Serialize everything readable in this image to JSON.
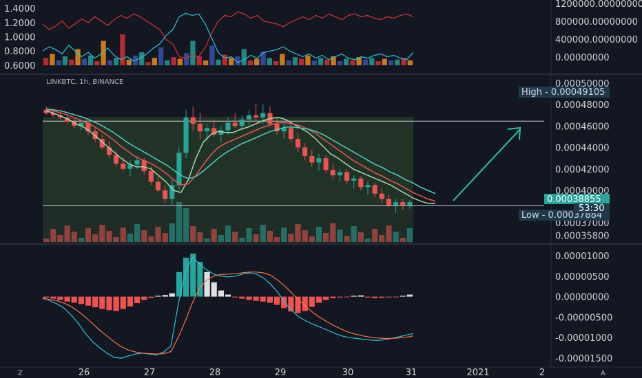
{
  "symbol_label": "LINKBTC, 1h, BINANCE",
  "timer_label": "53:30",
  "corner_left_label": "Z",
  "corner_right_label": "A",
  "chart_data": [
    {
      "type": "line",
      "name": "oscillator-pane",
      "y_ticks": [
        "1.4000",
        "1.2000",
        "1.0000",
        "0.8000",
        "0.6000"
      ],
      "y_ticks_right": [
        "1200000.00000000",
        "800000.00000000",
        "400000.00000000",
        "0.00000000"
      ],
      "series": [
        {
          "color": "#e0303a",
          "values": [
            1.18,
            1.1,
            1.15,
            1.22,
            1.12,
            1.18,
            1.25,
            1.2,
            1.28,
            1.22,
            1.16,
            1.24,
            1.3,
            1.26,
            1.32,
            1.28,
            1.22,
            1.16,
            1.1,
            0.96,
            0.9,
            0.72,
            0.7,
            0.74,
            0.72,
            0.85,
            1.05,
            1.22,
            1.3,
            1.28,
            1.35,
            1.32,
            1.26,
            1.3,
            1.22,
            1.2,
            1.18,
            1.14,
            1.2,
            1.24,
            1.28,
            1.24,
            1.3,
            1.26,
            1.32,
            1.28,
            1.24,
            1.3,
            1.32,
            1.28,
            1.3,
            1.26,
            1.24,
            1.28,
            1.26,
            1.3,
            1.32,
            1.28
          ]
        },
        {
          "color": "#26c6da",
          "values": [
            0.8,
            0.86,
            0.82,
            0.76,
            0.88,
            0.8,
            0.72,
            0.78,
            0.7,
            0.76,
            0.84,
            0.74,
            0.68,
            0.72,
            0.66,
            0.7,
            0.76,
            0.84,
            0.9,
            1.02,
            1.1,
            1.28,
            1.33,
            1.3,
            1.32,
            1.18,
            0.98,
            0.78,
            0.7,
            0.72,
            0.64,
            0.68,
            0.74,
            0.7,
            0.78,
            0.8,
            0.82,
            0.86,
            0.8,
            0.76,
            0.72,
            0.76,
            0.7,
            0.74,
            0.68,
            0.72,
            0.76,
            0.7,
            0.68,
            0.72,
            0.7,
            0.74,
            0.76,
            0.72,
            0.74,
            0.7,
            0.68,
            0.78
          ]
        }
      ],
      "volume_bars": [
        90,
        140,
        60,
        110,
        70,
        200,
        80,
        120,
        50,
        300,
        60,
        90,
        380,
        70,
        120,
        160,
        40,
        90,
        220,
        60,
        100,
        80,
        150,
        300,
        110,
        60,
        240,
        70,
        130,
        90,
        110,
        200,
        60,
        80,
        170,
        90,
        50,
        140,
        60,
        100,
        80,
        120,
        60,
        90,
        70,
        110,
        50,
        80,
        60,
        100,
        70,
        90,
        50,
        80,
        60,
        70,
        90,
        60
      ]
    },
    {
      "type": "candlestick",
      "name": "price-pane",
      "y_ticks": [
        "0.00050000",
        "0.00048000",
        "0.00046000",
        "0.00044000",
        "0.00042000",
        "0.00040000",
        "0.00037000",
        "0.00035800"
      ],
      "high_label": "High - 0.00049105",
      "low_label": "Low - 0.00037884",
      "last_price_label": "0.00038855",
      "ylim": [
        0.000352,
        0.000505
      ],
      "resistance_level": 0.0004645,
      "support_level": 0.00038575,
      "candles": [
        [
          0.000475,
          0.000478,
          0.00047,
          0.000472
        ],
        [
          0.000472,
          0.000476,
          0.000468,
          0.00047
        ],
        [
          0.00047,
          0.000474,
          0.000466,
          0.000468
        ],
        [
          0.000468,
          0.000471,
          0.000462,
          0.000464
        ],
        [
          0.000464,
          0.000468,
          0.000458,
          0.00046
        ],
        [
          0.00046,
          0.000466,
          0.000456,
          0.000463
        ],
        [
          0.000463,
          0.000465,
          0.000452,
          0.000455
        ],
        [
          0.000455,
          0.000458,
          0.000445,
          0.000448
        ],
        [
          0.000448,
          0.000452,
          0.000438,
          0.00044
        ],
        [
          0.00044,
          0.000446,
          0.00043,
          0.000433
        ],
        [
          0.000433,
          0.000437,
          0.000422,
          0.000425
        ],
        [
          0.000425,
          0.000431,
          0.000418,
          0.00042
        ],
        [
          0.00042,
          0.000428,
          0.000413,
          0.000424
        ],
        [
          0.000424,
          0.000432,
          0.00042,
          0.000428
        ],
        [
          0.000428,
          0.00043,
          0.000415,
          0.000418
        ],
        [
          0.000418,
          0.000422,
          0.000405,
          0.000408
        ],
        [
          0.000408,
          0.000413,
          0.000398,
          0.0004
        ],
        [
          0.0004,
          0.000405,
          0.000388,
          0.000392
        ],
        [
          0.000392,
          0.00041,
          0.000385,
          0.000405
        ],
        [
          0.000405,
          0.00044,
          0.0004,
          0.000435
        ],
        [
          0.000435,
          0.000475,
          0.00043,
          0.000468
        ],
        [
          0.000468,
          0.000478,
          0.000455,
          0.000462
        ],
        [
          0.000462,
          0.000472,
          0.000448,
          0.000455
        ],
        [
          0.000455,
          0.000462,
          0.000446,
          0.000458
        ],
        [
          0.000458,
          0.000466,
          0.00045,
          0.000452
        ],
        [
          0.000452,
          0.00046,
          0.000445,
          0.000456
        ],
        [
          0.000456,
          0.000468,
          0.000452,
          0.000463
        ],
        [
          0.000463,
          0.000472,
          0.000458,
          0.00046
        ],
        [
          0.00046,
          0.00047,
          0.000455,
          0.000466
        ],
        [
          0.000466,
          0.000475,
          0.00046,
          0.00047
        ],
        [
          0.00047,
          0.000481,
          0.000464,
          0.000468
        ],
        [
          0.000468,
          0.00048,
          0.000462,
          0.000472
        ],
        [
          0.000472,
          0.000478,
          0.00046,
          0.000462
        ],
        [
          0.000462,
          0.000468,
          0.000452,
          0.000455
        ],
        [
          0.000455,
          0.000462,
          0.000448,
          0.000458
        ],
        [
          0.000458,
          0.000462,
          0.000445,
          0.000448
        ],
        [
          0.000448,
          0.000454,
          0.000436,
          0.00044
        ],
        [
          0.00044,
          0.000444,
          0.000428,
          0.000432
        ],
        [
          0.000432,
          0.000438,
          0.000422,
          0.000426
        ],
        [
          0.000426,
          0.000434,
          0.000418,
          0.00043
        ],
        [
          0.00043,
          0.000433,
          0.000416,
          0.000419
        ],
        [
          0.000419,
          0.000424,
          0.00041,
          0.000414
        ],
        [
          0.000414,
          0.00042,
          0.000408,
          0.000417
        ],
        [
          0.000417,
          0.00042,
          0.000406,
          0.000409
        ],
        [
          0.000409,
          0.000414,
          0.000402,
          0.000411
        ],
        [
          0.000411,
          0.000413,
          0.0004,
          0.000403
        ],
        [
          0.000403,
          0.000408,
          0.000396,
          0.000405
        ],
        [
          0.000405,
          0.000407,
          0.000394,
          0.000397
        ],
        [
          0.000397,
          0.000402,
          0.000388,
          0.000392
        ],
        [
          0.000392,
          0.000396,
          0.000384,
          0.000386
        ],
        [
          0.000386,
          0.000392,
          0.000379,
          0.000389
        ],
        [
          0.000389,
          0.000392,
          0.000382,
          0.000386
        ],
        [
          0.000386,
          0.000391,
          0.000383,
          0.000389
        ]
      ],
      "ma_fast": [
        0.000474,
        0.000472,
        0.000469,
        0.000466,
        0.000462,
        0.000459,
        0.000454,
        0.000448,
        0.000442,
        0.000436,
        0.00043,
        0.000425,
        0.000422,
        0.000422,
        0.00042,
        0.000414,
        0.000408,
        0.0004,
        0.000398,
        0.00041,
        0.00043,
        0.000445,
        0.000452,
        0.000455,
        0.000454,
        0.000454,
        0.000457,
        0.000459,
        0.000462,
        0.000465,
        0.000467,
        0.000468,
        0.000466,
        0.000462,
        0.000458,
        0.000454,
        0.000448,
        0.000441,
        0.000434,
        0.00043,
        0.000425,
        0.00042,
        0.000417,
        0.000414,
        0.000411,
        0.000408,
        0.000405,
        0.000401,
        0.000397,
        0.000393,
        0.00039,
        0.000388,
        0.000388
      ],
      "ma_mid": [
        0.000475,
        0.000474,
        0.000472,
        0.00047,
        0.000467,
        0.000464,
        0.000461,
        0.000457,
        0.000452,
        0.000447,
        0.000441,
        0.000436,
        0.000431,
        0.000428,
        0.000425,
        0.000421,
        0.000416,
        0.00041,
        0.000405,
        0.000406,
        0.000414,
        0.000424,
        0.000433,
        0.00044,
        0.000444,
        0.000447,
        0.00045,
        0.000453,
        0.000456,
        0.000459,
        0.000461,
        0.000463,
        0.000463,
        0.000462,
        0.00046,
        0.000457,
        0.000453,
        0.000448,
        0.000443,
        0.000438,
        0.000433,
        0.000428,
        0.000424,
        0.00042,
        0.000416,
        0.000413,
        0.000409,
        0.000406,
        0.000402,
        0.000398,
        0.000395,
        0.000392,
        0.00039
      ],
      "ma_slow": [
        0.000476,
        0.000475,
        0.000474,
        0.000472,
        0.00047,
        0.000468,
        0.000465,
        0.000462,
        0.000458,
        0.000454,
        0.000449,
        0.000444,
        0.00044,
        0.000436,
        0.000432,
        0.000428,
        0.000424,
        0.000419,
        0.000414,
        0.000411,
        0.000413,
        0.000418,
        0.000424,
        0.00043,
        0.000435,
        0.000439,
        0.000443,
        0.000446,
        0.000449,
        0.000452,
        0.000455,
        0.000457,
        0.000459,
        0.000459,
        0.000458,
        0.000457,
        0.000455,
        0.000452,
        0.000448,
        0.000444,
        0.00044,
        0.000436,
        0.000432,
        0.000428,
        0.000424,
        0.000421,
        0.000417,
        0.000414,
        0.00041,
        0.000407,
        0.000403,
        0.0004,
        0.000397
      ]
    },
    {
      "type": "bar",
      "name": "macd-pane",
      "y_ticks": [
        "0.00001000",
        "0.00000500",
        "0.00000000",
        "-0.00000500",
        "-0.00001000",
        "-0.00001500"
      ],
      "ylim": [
        -1.65e-05,
        1.2e-05
      ],
      "histogram": [
        -3e-07,
        -5e-07,
        -8e-07,
        -1.2e-06,
        -1.5e-06,
        -1.8e-06,
        -2.2e-06,
        -2.6e-06,
        -3e-06,
        -3.3e-06,
        -3.5e-06,
        -3e-06,
        -2.4e-06,
        -1.6e-06,
        -8e-07,
        -3e-07,
        2e-07,
        4e-07,
        8e-07,
        6e-06,
        9.5e-06,
        1.05e-05,
        8.5e-06,
        6e-06,
        3.5e-06,
        1.5e-06,
        5e-07,
        -2e-07,
        -5e-07,
        -8e-07,
        -1e-06,
        -1.2e-06,
        -1.5e-06,
        -2e-06,
        -2.8e-06,
        -3.6e-06,
        -4e-06,
        -3.5e-06,
        -2.5e-06,
        -1.5e-06,
        -8e-07,
        -4e-07,
        -2e-07,
        -1e-07,
        2e-07,
        3e-07,
        -2e-07,
        -4e-07,
        -3e-07,
        -2e-07,
        -1e-07,
        2e-07,
        5e-07
      ],
      "macd": [
        -2e-07,
        -1e-06,
        -1.8e-06,
        -2.8e-06,
        -4.5e-06,
        -6.5e-06,
        -9e-06,
        -1.1e-05,
        -1.25e-05,
        -1.38e-05,
        -1.48e-05,
        -1.5e-05,
        -1.45e-05,
        -1.4e-05,
        -1.38e-05,
        -1.4e-05,
        -1.42e-05,
        -1.35e-05,
        -1.2e-05,
        -2e-06,
        6e-06,
        9.5e-06,
        8e-06,
        6.5e-06,
        5.5e-06,
        5e-06,
        4.8e-06,
        5e-06,
        5.5e-06,
        5.8e-06,
        5.5e-06,
        4.5e-06,
        3e-06,
        1e-06,
        -1.5e-06,
        -3.5e-06,
        -5e-06,
        -6e-06,
        -6.8e-06,
        -7.5e-06,
        -8.2e-06,
        -9e-06,
        -9.6e-06,
        -1e-05,
        -1.02e-05,
        -1.04e-05,
        -1.06e-05,
        -1.07e-05,
        -1.05e-05,
        -1.02e-05,
        -9.8e-06,
        -9.4e-06,
        -9e-06
      ],
      "signal": [
        -5e-07,
        -7e-07,
        -1e-06,
        -1.6e-06,
        -2.4e-06,
        -3.6e-06,
        -5e-06,
        -6.6e-06,
        -8.2e-06,
        -9.6e-06,
        -1.1e-05,
        -1.22e-05,
        -1.3e-05,
        -1.35e-05,
        -1.38e-05,
        -1.39e-05,
        -1.4e-05,
        -1.39e-05,
        -1.34e-05,
        -1e-05,
        -6e-06,
        -1.5e-06,
        2e-06,
        4e-06,
        5e-06,
        5.4e-06,
        5.5e-06,
        5.6e-06,
        5.8e-06,
        6e-06,
        6e-06,
        5.8e-06,
        5.2e-06,
        4e-06,
        2.5e-06,
        8e-07,
        -1e-06,
        -2.5e-06,
        -4e-06,
        -5.2e-06,
        -6.2e-06,
        -7.2e-06,
        -8e-06,
        -8.7e-06,
        -9.2e-06,
        -9.6e-06,
        -9.9e-06,
        -1.01e-05,
        -1.02e-05,
        -1.02e-05,
        -1.01e-05,
        -9.9e-06,
        -9.6e-06
      ]
    }
  ],
  "x_axis_labels": [
    "26",
    "27",
    "28",
    "29",
    "30",
    "31",
    "2021",
    "2"
  ]
}
